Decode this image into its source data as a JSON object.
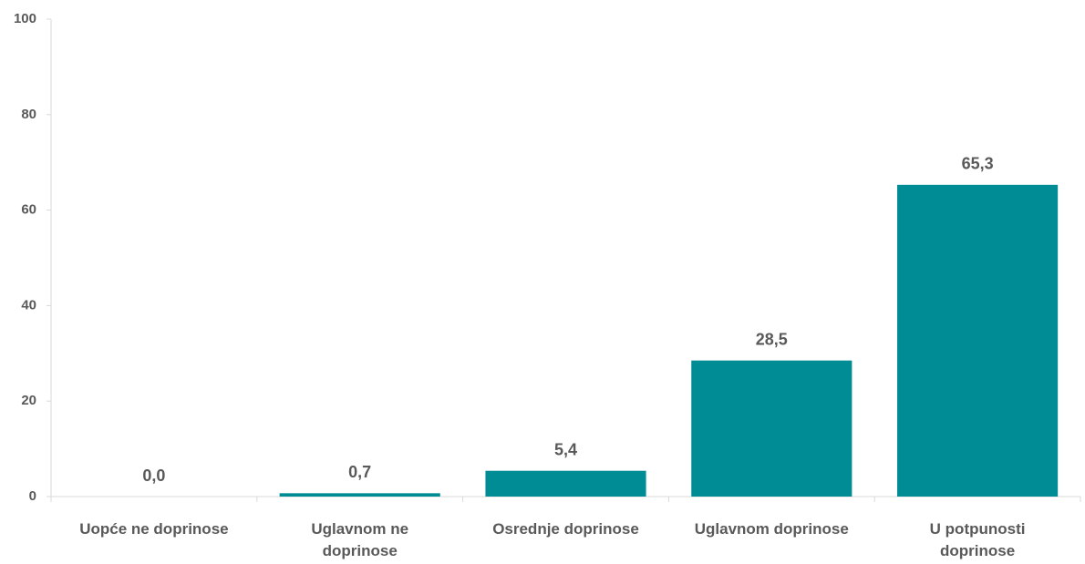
{
  "chart_data": {
    "type": "bar",
    "categories": [
      "Uopće ne doprinose",
      "Uglavnom ne doprinose",
      "Osrednje doprinose",
      "Uglavnom doprinose",
      "U potpunosti doprinose"
    ],
    "values": [
      0.0,
      0.7,
      5.4,
      28.5,
      65.3
    ],
    "value_labels": [
      "0,0",
      "0,7",
      "5,4",
      "28,5",
      "65,3"
    ],
    "color": "#008c95",
    "ylim": [
      0,
      100
    ],
    "yticks": [
      0,
      20,
      40,
      60,
      80,
      100
    ],
    "grid": false
  }
}
